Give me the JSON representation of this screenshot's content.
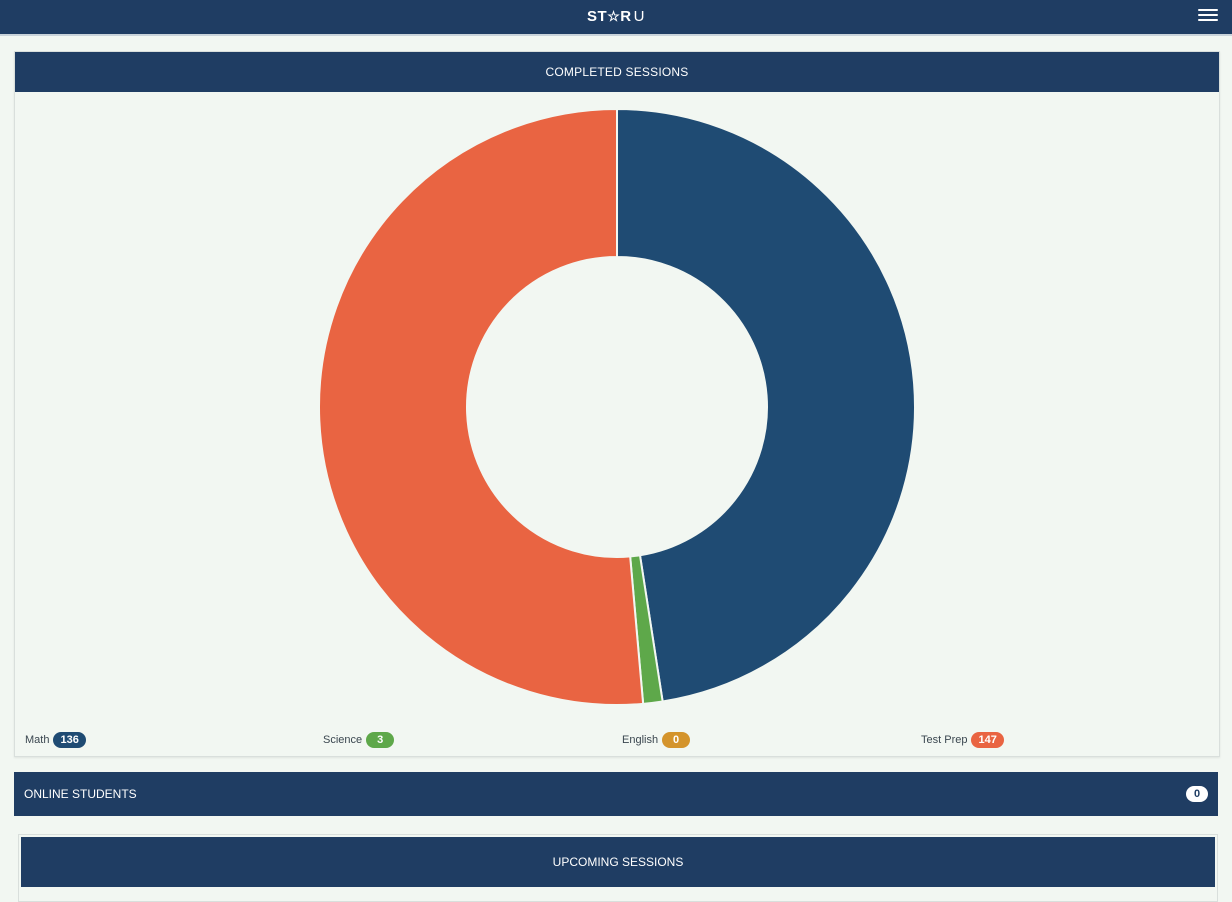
{
  "header": {
    "logo_left": "ST",
    "logo_star": "☆",
    "logo_right": "R",
    "logo_u": "U"
  },
  "completed_sessions": {
    "title": "COMPLETED SESSIONS"
  },
  "chart_data": {
    "type": "pie",
    "categories": [
      "Math",
      "Science",
      "English",
      "Test Prep"
    ],
    "values": [
      136,
      3,
      0,
      147
    ],
    "colors": [
      "#1f4b73",
      "#5ea84a",
      "#d4942c",
      "#e96442"
    ]
  },
  "legend": {
    "items": [
      {
        "label": "Math",
        "count": "136",
        "color": "#1f4b73"
      },
      {
        "label": "Science",
        "count": "3",
        "color": "#5ea84a"
      },
      {
        "label": "English",
        "count": "0",
        "color": "#d4942c"
      },
      {
        "label": "Test Prep",
        "count": "147",
        "color": "#e96442"
      }
    ]
  },
  "online_students": {
    "label": "ONLINE STUDENTS",
    "count": "0"
  },
  "upcoming_sessions": {
    "title": "UPCOMING SESSIONS"
  }
}
